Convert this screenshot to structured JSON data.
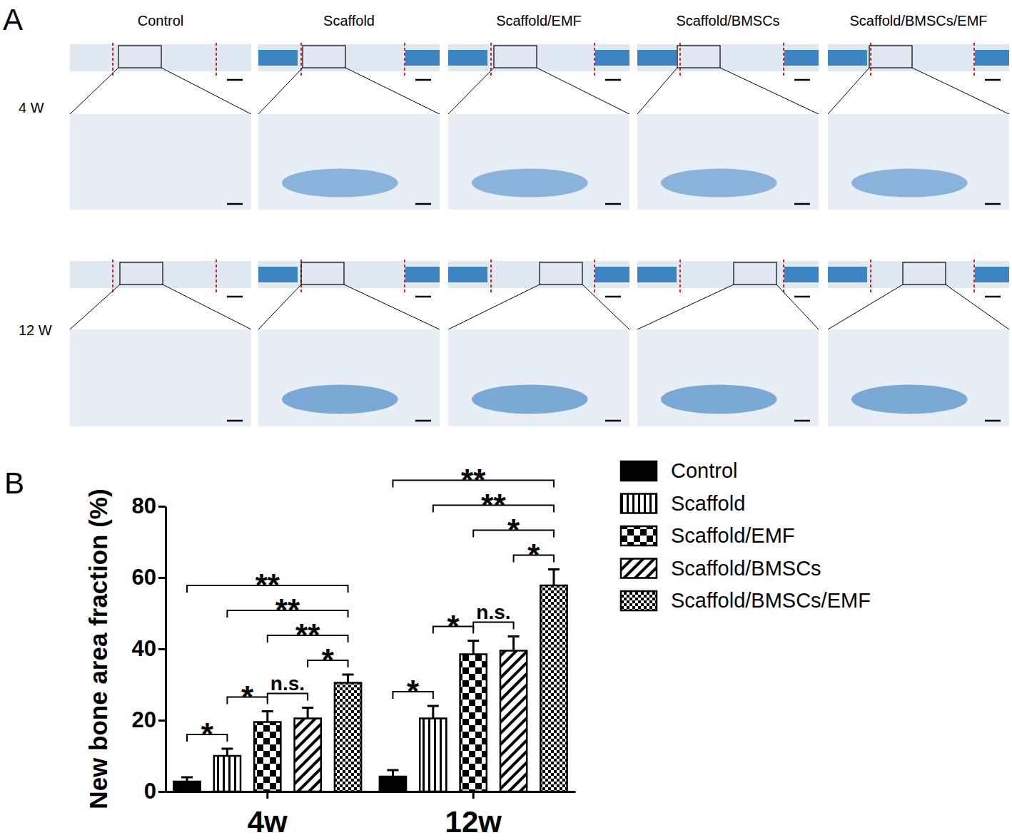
{
  "panel_a": {
    "label": "A",
    "columns": [
      "Control",
      "Scaffold",
      "Scaffold/EMF",
      "Scaffold/BMSCs",
      "Scaffold/BMSCs/EMF"
    ],
    "rows": [
      "4 W",
      "12 W"
    ]
  },
  "panel_b": {
    "label": "B"
  },
  "chart_data": {
    "type": "bar",
    "ylabel": "New bone area fraction (%)",
    "categories": [
      "4w",
      "12w"
    ],
    "ylim": [
      0,
      80
    ],
    "yticks": [
      0,
      20,
      40,
      60,
      80
    ],
    "legend": "right",
    "series": [
      {
        "name": "Control",
        "color": "#000000",
        "values": [
          2.8,
          4.2
        ],
        "errors": [
          1.2,
          1.8
        ]
      },
      {
        "name": "Scaffold",
        "color": "#000000",
        "values": [
          10,
          20.5
        ],
        "errors": [
          2,
          3.5
        ]
      },
      {
        "name": "Scaffold/EMF",
        "color": "#000000",
        "values": [
          19.5,
          38.5
        ],
        "errors": [
          3,
          3.8
        ]
      },
      {
        "name": "Scaffold/BMSCs",
        "color": "#000000",
        "values": [
          20.5,
          39.5
        ],
        "errors": [
          3,
          4
        ]
      },
      {
        "name": "Scaffold/BMSCs/EMF",
        "color": "#000000",
        "values": [
          30.5,
          57.8
        ],
        "errors": [
          2.3,
          4.5
        ]
      }
    ],
    "annotations": [
      {
        "category": "4w",
        "from": "Control",
        "to": "Scaffold",
        "label": "*"
      },
      {
        "category": "4w",
        "from": "Scaffold",
        "to": "Scaffold/EMF",
        "label": "*"
      },
      {
        "category": "4w",
        "from": "Scaffold/EMF",
        "to": "Scaffold/BMSCs",
        "label": "n.s."
      },
      {
        "category": "4w",
        "from": "Scaffold/BMSCs",
        "to": "Scaffold/BMSCs/EMF",
        "label": "*"
      },
      {
        "category": "4w",
        "from": "Scaffold/EMF",
        "to": "Scaffold/BMSCs/EMF",
        "label": "**"
      },
      {
        "category": "4w",
        "from": "Scaffold",
        "to": "Scaffold/BMSCs/EMF",
        "label": "**"
      },
      {
        "category": "4w",
        "from": "Control",
        "to": "Scaffold/BMSCs/EMF",
        "label": "**"
      },
      {
        "category": "12w",
        "from": "Control",
        "to": "Scaffold",
        "label": "*"
      },
      {
        "category": "12w",
        "from": "Scaffold",
        "to": "Scaffold/EMF",
        "label": "*"
      },
      {
        "category": "12w",
        "from": "Scaffold/EMF",
        "to": "Scaffold/BMSCs",
        "label": "n.s."
      },
      {
        "category": "12w",
        "from": "Scaffold/BMSCs",
        "to": "Scaffold/BMSCs/EMF",
        "label": "*"
      },
      {
        "category": "12w",
        "from": "Scaffold/EMF",
        "to": "Scaffold/BMSCs/EMF",
        "label": "*"
      },
      {
        "category": "12w",
        "from": "Scaffold",
        "to": "Scaffold/BMSCs/EMF",
        "label": "**"
      },
      {
        "category": "12w",
        "from": "Control",
        "to": "Scaffold/BMSCs/EMF",
        "label": "**"
      }
    ]
  }
}
